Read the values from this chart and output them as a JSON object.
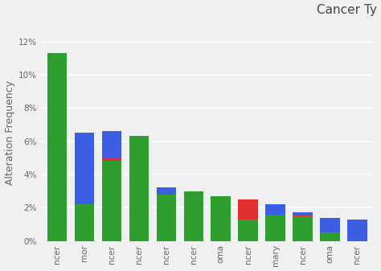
{
  "title": "Cancer Ty",
  "ylabel": "Alteration Frequency",
  "ylim": [
    0,
    0.13
  ],
  "yticks": [
    0,
    0.02,
    0.04,
    0.06,
    0.08,
    0.1,
    0.12
  ],
  "ytick_labels": [
    "0%",
    "2%",
    "4%",
    "6%",
    "8%",
    "10%",
    "12%"
  ],
  "categories": [
    "ncer",
    "mor",
    "ncer",
    "ncer",
    "ncer",
    "ncer",
    "oma",
    "ncer",
    "mary",
    "ncer",
    "oma",
    "ncer"
  ],
  "green": [
    0.113,
    0.022,
    0.048,
    0.063,
    0.028,
    0.03,
    0.027,
    0.013,
    0.016,
    0.015,
    0.005,
    0.0
  ],
  "red": [
    0.0,
    0.0,
    0.001,
    0.0,
    0.0,
    0.0,
    0.0,
    0.012,
    0.0,
    0.001,
    0.0,
    0.0
  ],
  "purple": [
    0.0,
    0.0,
    0.001,
    0.0,
    0.0,
    0.0,
    0.0,
    0.0,
    0.0,
    0.0,
    0.0,
    0.0
  ],
  "blue": [
    0.0,
    0.043,
    0.016,
    0.0,
    0.004,
    0.0,
    0.0,
    0.0,
    0.006,
    0.001,
    0.009,
    0.013
  ],
  "green_color": "#2e9e2e",
  "blue_color": "#3b5fe0",
  "red_color": "#e03030",
  "purple_color": "#8844aa",
  "bg_color": "#f0f0f0",
  "grid_color": "#ffffff",
  "bar_width": 0.72,
  "title_fontsize": 11,
  "axis_label_fontsize": 9,
  "tick_fontsize": 7.5
}
